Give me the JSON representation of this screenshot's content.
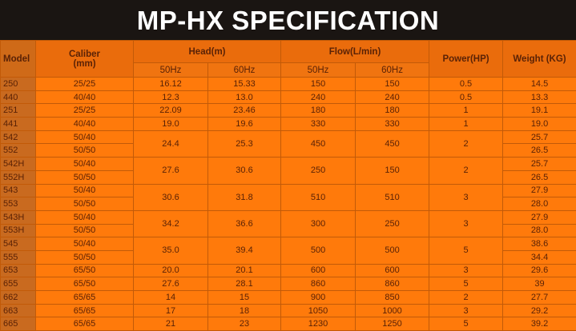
{
  "title": "MP-HX SPECIFICATION",
  "headers": {
    "model": "Model",
    "caliber": "Caliber",
    "caliber_unit": "(mm)",
    "head": "Head(m)",
    "flow": "Flow(L/min)",
    "power": "Power(HP)",
    "weight": "Weight (KG)",
    "hz50": "50Hz",
    "hz60": "60Hz"
  },
  "groups": [
    {
      "head50": "16.12",
      "head60": "15.33",
      "flow50": "150",
      "flow60": "150",
      "power": "0.5",
      "members": [
        {
          "model": "250",
          "caliber": "25/25",
          "weight": "14.5"
        }
      ]
    },
    {
      "head50": "12.3",
      "head60": "13.0",
      "flow50": "240",
      "flow60": "240",
      "power": "0.5",
      "members": [
        {
          "model": "440",
          "caliber": "40/40",
          "weight": "13.3"
        }
      ]
    },
    {
      "head50": "22.09",
      "head60": "23.46",
      "flow50": "180",
      "flow60": "180",
      "power": "1",
      "members": [
        {
          "model": "251",
          "caliber": "25/25",
          "weight": "19.1"
        }
      ]
    },
    {
      "head50": "19.0",
      "head60": "19.6",
      "flow50": "330",
      "flow60": "330",
      "power": "1",
      "members": [
        {
          "model": "441",
          "caliber": "40/40",
          "weight": "19.0"
        }
      ]
    },
    {
      "head50": "24.4",
      "head60": "25.3",
      "flow50": "450",
      "flow60": "450",
      "power": "2",
      "members": [
        {
          "model": "542",
          "caliber": "50/40",
          "weight": "25.7"
        },
        {
          "model": "552",
          "caliber": "50/50",
          "weight": "26.5"
        }
      ]
    },
    {
      "head50": "27.6",
      "head60": "30.6",
      "flow50": "250",
      "flow60": "150",
      "power": "2",
      "members": [
        {
          "model": "542H",
          "caliber": "50/40",
          "weight": "25.7"
        },
        {
          "model": "552H",
          "caliber": "50/50",
          "weight": "26.5"
        }
      ]
    },
    {
      "head50": "30.6",
      "head60": "31.8",
      "flow50": "510",
      "flow60": "510",
      "power": "3",
      "members": [
        {
          "model": "543",
          "caliber": "50/40",
          "weight": "27.9"
        },
        {
          "model": "553",
          "caliber": "50/50",
          "weight": "28.0"
        }
      ]
    },
    {
      "head50": "34.2",
      "head60": "36.6",
      "flow50": "300",
      "flow60": "250",
      "power": "3",
      "members": [
        {
          "model": "543H",
          "caliber": "50/40",
          "weight": "27.9"
        },
        {
          "model": "553H",
          "caliber": "50/50",
          "weight": "28.0"
        }
      ]
    },
    {
      "head50": "35.0",
      "head60": "39.4",
      "flow50": "500",
      "flow60": "500",
      "power": "5",
      "members": [
        {
          "model": "545",
          "caliber": "50/40",
          "weight": "38.6"
        },
        {
          "model": "555",
          "caliber": "50/50",
          "weight": "34.4"
        }
      ]
    },
    {
      "head50": "20.0",
      "head60": "20.1",
      "flow50": "600",
      "flow60": "600",
      "power": "3",
      "members": [
        {
          "model": "653",
          "caliber": "65/50",
          "weight": "29.6"
        }
      ]
    },
    {
      "head50": "27.6",
      "head60": "28.1",
      "flow50": "860",
      "flow60": "860",
      "power": "5",
      "members": [
        {
          "model": "655",
          "caliber": "65/50",
          "weight": "39"
        }
      ]
    },
    {
      "head50": "14",
      "head60": "15",
      "flow50": "900",
      "flow60": "850",
      "power": "2",
      "members": [
        {
          "model": "662",
          "caliber": "65/65",
          "weight": "27.7"
        }
      ]
    },
    {
      "head50": "17",
      "head60": "18",
      "flow50": "1050",
      "flow60": "1000",
      "power": "3",
      "members": [
        {
          "model": "663",
          "caliber": "65/65",
          "weight": "29.2"
        }
      ]
    },
    {
      "head50": "21",
      "head60": "23",
      "flow50": "1230",
      "flow60": "1250",
      "power": "5",
      "members": [
        {
          "model": "665",
          "caliber": "65/65",
          "weight": "39.2"
        }
      ]
    }
  ]
}
